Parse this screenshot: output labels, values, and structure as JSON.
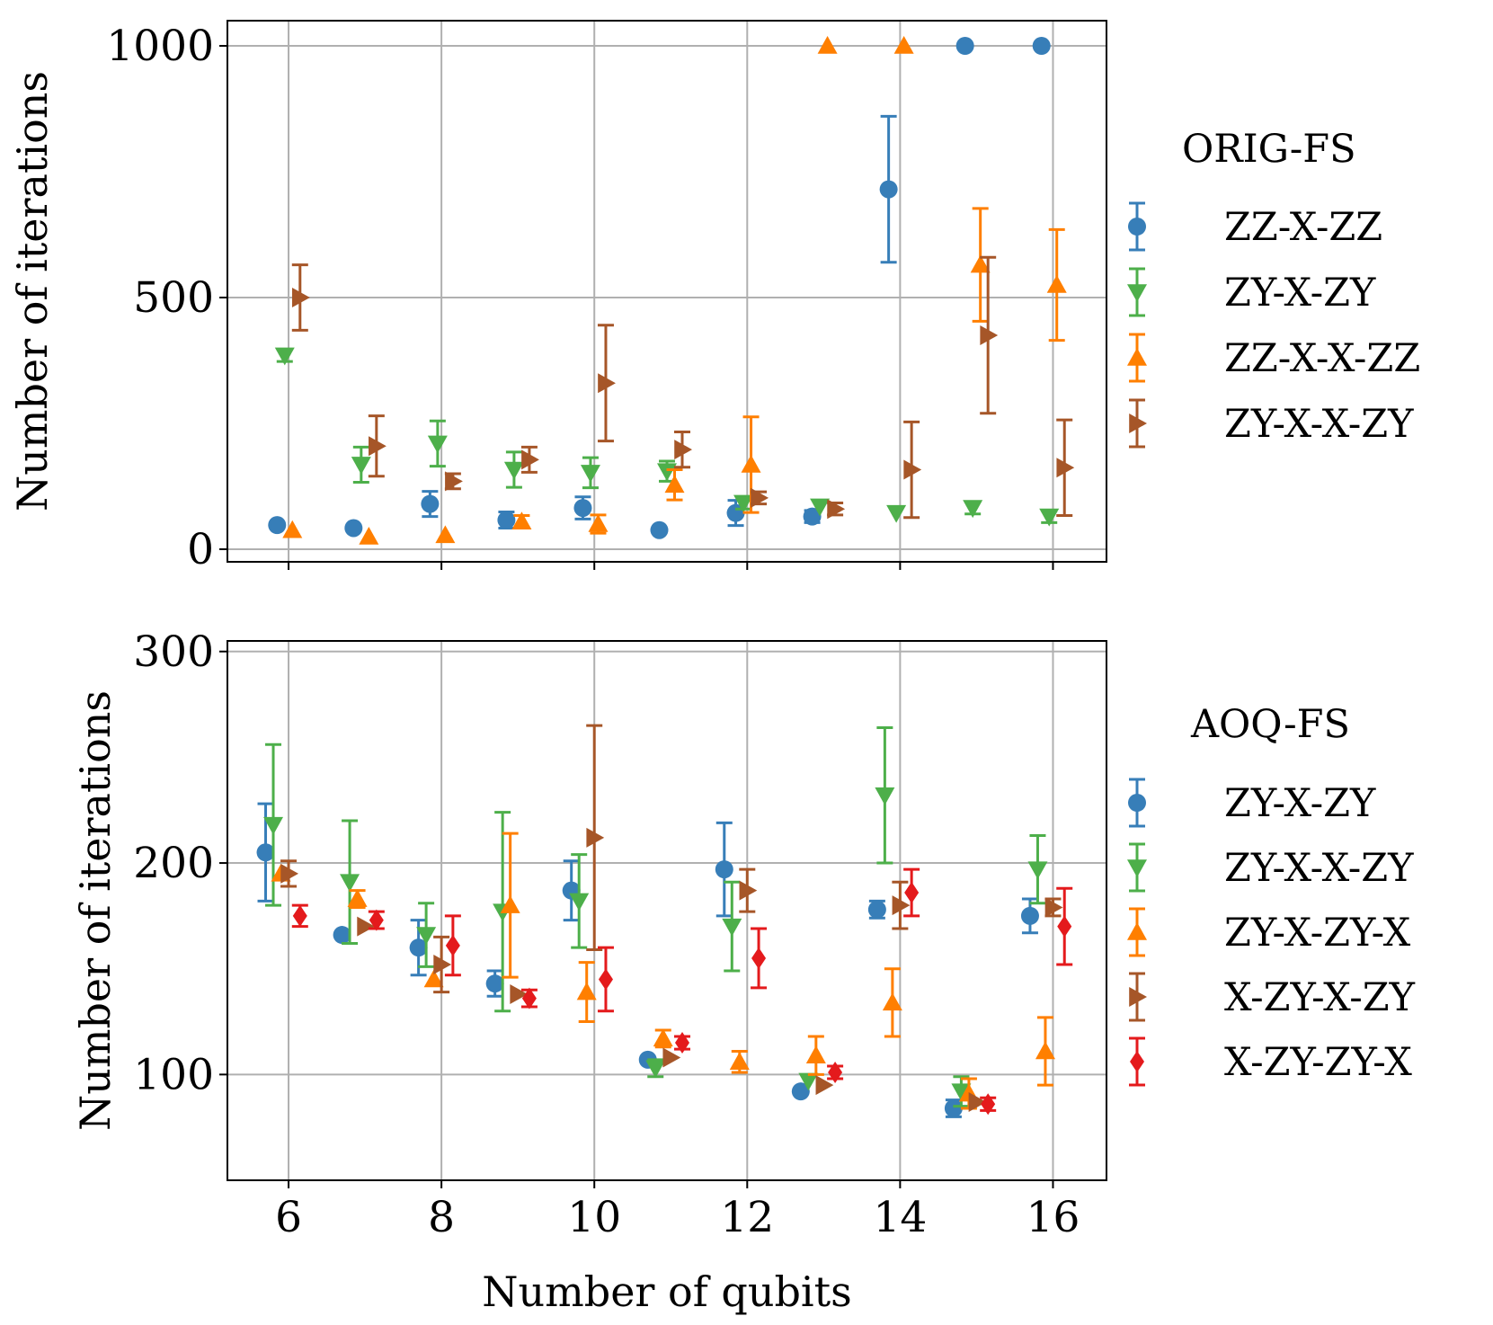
{
  "chart_data": [
    {
      "type": "scatter",
      "error_bars": true,
      "xlabel": "",
      "ylabel": "Number of iterations",
      "xlim": [
        5.2,
        16.7
      ],
      "ylim": [
        -25,
        1050
      ],
      "xticks": [
        6,
        8,
        10,
        12,
        14,
        16
      ],
      "yticks": [
        0,
        500,
        1000
      ],
      "x_tick_labels_visible": false,
      "grid": true,
      "legend": {
        "title": "ORIG-FS",
        "placement": "right"
      },
      "series": [
        {
          "name": "ZZ-X-ZZ",
          "color": "#377eb8",
          "marker": "circle",
          "x": [
            5.85,
            6.85,
            7.85,
            8.85,
            9.85,
            10.85,
            11.85,
            12.85,
            13.85,
            14.85,
            15.85
          ],
          "y": [
            48,
            42,
            90,
            58,
            82,
            38,
            72,
            65,
            715,
            1000,
            1000
          ],
          "err": [
            0,
            0,
            25,
            16,
            22,
            0,
            25,
            12,
            145,
            0,
            0
          ]
        },
        {
          "name": "ZY-X-ZY",
          "color": "#4daf4a",
          "marker": "triangle-down",
          "x": [
            5.95,
            6.95,
            7.95,
            8.95,
            9.95,
            10.95,
            11.95,
            12.95,
            13.95,
            14.95,
            15.95
          ],
          "y": [
            385,
            168,
            210,
            158,
            152,
            155,
            92,
            85,
            72,
            82,
            65
          ],
          "err": [
            12,
            35,
            45,
            35,
            30,
            20,
            12,
            0,
            0,
            12,
            12
          ]
        },
        {
          "name": "ZZ-X-X-ZZ",
          "color": "#ff7f00",
          "marker": "triangle-up",
          "x": [
            6.05,
            7.05,
            8.05,
            9.05,
            10.05,
            11.05,
            12.05,
            13.05,
            14.05,
            15.05,
            16.05
          ],
          "y": [
            38,
            25,
            28,
            55,
            50,
            128,
            168,
            1000,
            1000,
            565,
            525
          ],
          "err": [
            0,
            0,
            0,
            12,
            18,
            30,
            95,
            0,
            0,
            112,
            110
          ]
        },
        {
          "name": "ZY-X-X-ZY",
          "color": "#a65628",
          "marker": "triangle-right",
          "x": [
            6.15,
            7.15,
            8.15,
            9.15,
            10.15,
            11.15,
            12.15,
            13.15,
            14.15,
            15.15,
            16.15
          ],
          "y": [
            500,
            205,
            135,
            178,
            330,
            198,
            102,
            80,
            158,
            425,
            162
          ],
          "err": [
            65,
            60,
            15,
            25,
            115,
            35,
            12,
            12,
            95,
            155,
            95
          ]
        }
      ]
    },
    {
      "type": "scatter",
      "error_bars": true,
      "xlabel": "Number of qubits",
      "ylabel": "Number of iterations",
      "xlim": [
        5.2,
        16.7
      ],
      "ylim": [
        50,
        305
      ],
      "xticks": [
        6,
        8,
        10,
        12,
        14,
        16
      ],
      "yticks": [
        100,
        200,
        300
      ],
      "grid": true,
      "legend": {
        "title": "AOQ-FS",
        "placement": "right"
      },
      "series": [
        {
          "name": "ZY-X-ZY",
          "color": "#377eb8",
          "marker": "circle",
          "x": [
            5.7,
            6.7,
            7.7,
            8.7,
            9.7,
            10.7,
            11.7,
            12.7,
            13.7,
            14.7,
            15.7
          ],
          "y": [
            205,
            166,
            160,
            143,
            187,
            107,
            197,
            92,
            178,
            84,
            175
          ],
          "err": [
            23,
            0,
            13,
            6,
            14,
            0,
            22,
            0,
            4,
            4,
            8
          ]
        },
        {
          "name": "ZY-X-X-ZY",
          "color": "#4daf4a",
          "marker": "triangle-down",
          "x": [
            5.8,
            6.8,
            7.8,
            8.8,
            9.8,
            10.8,
            11.8,
            12.8,
            13.8,
            14.8,
            15.8
          ],
          "y": [
            218,
            191,
            166,
            177,
            182,
            103,
            170,
            97,
            232,
            92,
            197
          ],
          "err": [
            38,
            29,
            15,
            47,
            22,
            4,
            21,
            0,
            32,
            7,
            16
          ]
        },
        {
          "name": "ZY-X-ZY-X",
          "color": "#ff7f00",
          "marker": "triangle-up",
          "x": [
            5.9,
            6.9,
            7.9,
            8.9,
            9.9,
            10.9,
            11.9,
            12.9,
            13.9,
            14.9,
            15.9
          ],
          "y": [
            195,
            183,
            145,
            180,
            139,
            117,
            106,
            109,
            134,
            91,
            111
          ],
          "err": [
            0,
            4,
            0,
            34,
            14,
            4,
            5,
            9,
            16,
            7,
            16
          ]
        },
        {
          "name": "X-ZY-X-ZY",
          "color": "#a65628",
          "marker": "triangle-right",
          "x": [
            6.0,
            7.0,
            8.0,
            9.0,
            10.0,
            11.0,
            12.0,
            13.0,
            14.0,
            15.0,
            16.0
          ],
          "y": [
            195,
            170,
            152,
            138,
            212,
            108,
            187,
            95,
            180,
            87,
            179
          ],
          "err": [
            6,
            0,
            13,
            0,
            53,
            0,
            10,
            0,
            11,
            0,
            4
          ]
        },
        {
          "name": "X-ZY-ZY-X",
          "color": "#e41a1c",
          "marker": "diamond",
          "x": [
            6.15,
            7.15,
            8.15,
            9.15,
            10.15,
            11.15,
            12.15,
            13.15,
            14.15,
            15.15,
            16.15
          ],
          "y": [
            175,
            173,
            161,
            136,
            145,
            115,
            155,
            101,
            186,
            86,
            170
          ],
          "err": [
            5,
            4,
            14,
            4,
            15,
            3,
            14,
            3,
            11,
            3,
            18
          ]
        }
      ]
    }
  ]
}
